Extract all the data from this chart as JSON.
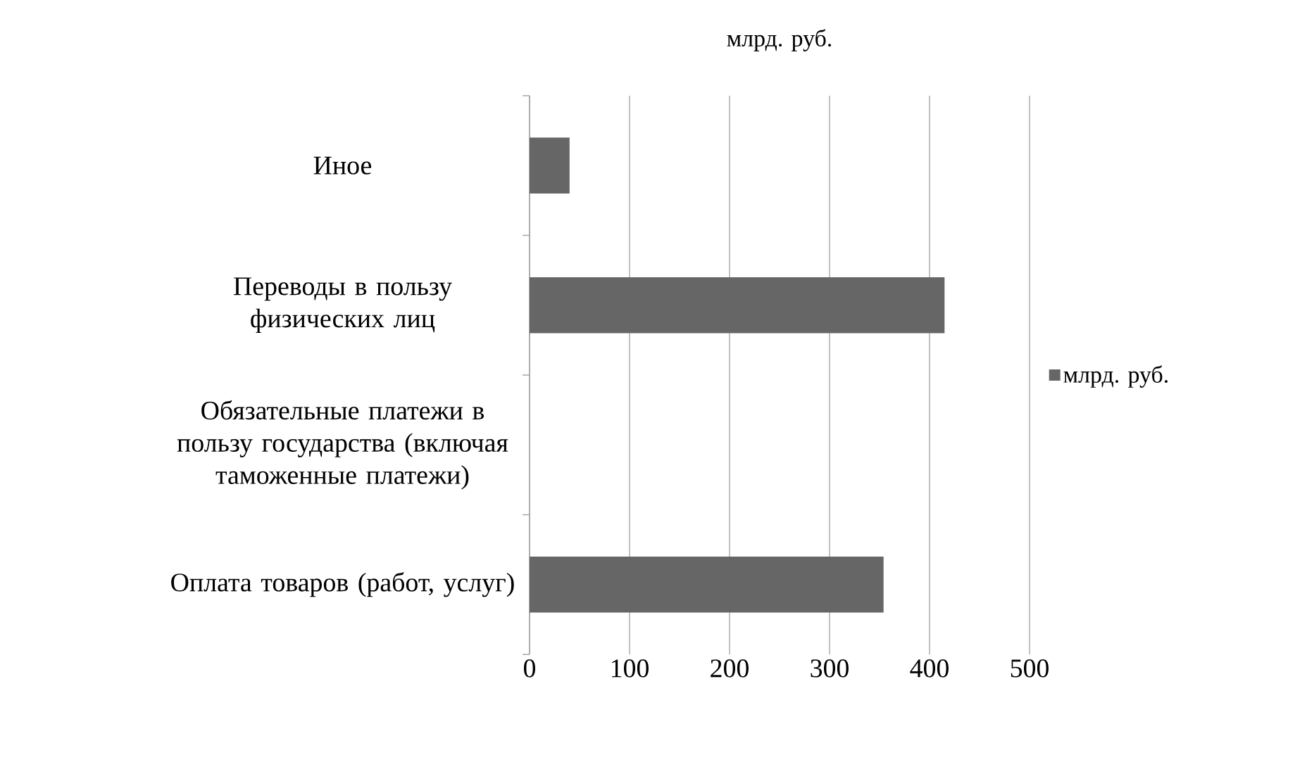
{
  "chart_data": {
    "type": "bar",
    "orientation": "horizontal",
    "title": "млрд. руб.",
    "categories": [
      "Иное",
      "Переводы в пользу физических лиц",
      "Обязательные платежи в пользу государства (включая таможенные платежи)",
      "Оплата товаров (работ, услуг)"
    ],
    "series": [
      {
        "name": "млрд. руб.",
        "color": "#666666",
        "values": [
          40,
          415,
          0,
          354
        ]
      }
    ],
    "xlim": [
      0,
      500
    ],
    "xticks": [
      0,
      100,
      200,
      300,
      400,
      500
    ],
    "grid": "x",
    "legend": "right"
  }
}
